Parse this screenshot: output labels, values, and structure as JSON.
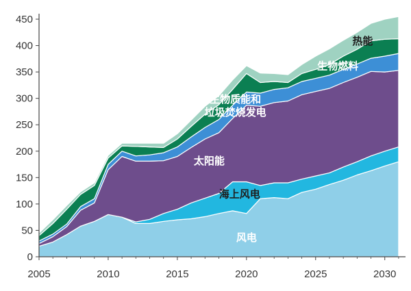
{
  "chart_data": {
    "type": "area",
    "stacked": true,
    "title": "",
    "xlabel": "",
    "ylabel": "",
    "xlim": [
      2005,
      2031.5
    ],
    "ylim": [
      0,
      450
    ],
    "grid": false,
    "x": [
      2005,
      2006,
      2007,
      2008,
      2009,
      2010,
      2011,
      2012,
      2013,
      2014,
      2015,
      2016,
      2017,
      2018,
      2019,
      2020,
      2021,
      2022,
      2023,
      2024,
      2025,
      2026,
      2027,
      2028,
      2029,
      2030,
      2031
    ],
    "x_ticks": [
      2005,
      2010,
      2015,
      2020,
      2025,
      2030
    ],
    "y_ticks": [
      0,
      50,
      100,
      150,
      200,
      250,
      300,
      350,
      400,
      450
    ],
    "series": [
      {
        "name": "风电",
        "color": "#8fcfe8",
        "label_color": "#ffffff",
        "values": [
          20,
          28,
          42,
          58,
          67,
          80,
          75,
          63,
          63,
          67,
          70,
          72,
          76,
          82,
          87,
          82,
          110,
          112,
          110,
          122,
          128,
          137,
          145,
          155,
          163,
          172,
          180
        ]
      },
      {
        "name": "海上风电",
        "color": "#22b7e0",
        "label_color": "#1f1f1f",
        "values": [
          0,
          0,
          0,
          0,
          0,
          0,
          0,
          3,
          8,
          15,
          20,
          30,
          35,
          38,
          55,
          60,
          25,
          28,
          30,
          25,
          25,
          22,
          25,
          25,
          28,
          28,
          28
        ]
      },
      {
        "name": "太阳能",
        "color": "#6e4d8c",
        "label_color": "#ffffff",
        "values": [
          5,
          10,
          15,
          30,
          35,
          85,
          115,
          115,
          110,
          100,
          100,
          105,
          112,
          115,
          120,
          145,
          150,
          152,
          155,
          160,
          160,
          160,
          160,
          160,
          160,
          150,
          145
        ]
      },
      {
        "name": "生物质能和垃圾焚烧发电",
        "color": "#3d8fd6",
        "label_color": "#ffffff",
        "values": [
          5,
          5,
          5,
          7,
          8,
          10,
          10,
          10,
          12,
          15,
          18,
          20,
          22,
          25,
          25,
          25,
          25,
          25,
          25,
          25,
          25,
          25,
          25,
          25,
          25,
          30,
          32
        ]
      },
      {
        "name": "生物燃料",
        "color": "#0b7f52",
        "label_color": "#ffffff",
        "values": [
          10,
          20,
          28,
          23,
          25,
          12,
          10,
          18,
          15,
          10,
          15,
          20,
          25,
          28,
          30,
          35,
          20,
          15,
          10,
          15,
          17,
          20,
          25,
          28,
          33,
          32,
          28
        ]
      },
      {
        "name": "热能",
        "color": "#9fd2c1",
        "label_color": "#1f1f1f",
        "values": [
          5,
          7,
          7,
          5,
          5,
          5,
          5,
          6,
          7,
          8,
          10,
          12,
          15,
          17,
          18,
          15,
          18,
          15,
          15,
          17,
          25,
          30,
          30,
          32,
          33,
          38,
          42
        ]
      }
    ],
    "labels": [
      {
        "series": 0,
        "lines": [
          "风电"
        ],
        "x": 2020,
        "y": 30
      },
      {
        "series": 1,
        "lines": [
          "海上风电"
        ],
        "x": 2019.5,
        "y": 112
      },
      {
        "series": 2,
        "lines": [
          "太阳能"
        ],
        "x": 2017.3,
        "y": 175
      },
      {
        "series": 3,
        "lines": [
          "生物质能和",
          "垃圾焚烧发电"
        ],
        "x": 2019.2,
        "y": 292
      },
      {
        "series": 4,
        "lines": [
          "生物燃料"
        ],
        "x": 2026.6,
        "y": 355
      },
      {
        "series": 5,
        "lines": [
          "热能"
        ],
        "x": 2028.4,
        "y": 402
      }
    ]
  }
}
